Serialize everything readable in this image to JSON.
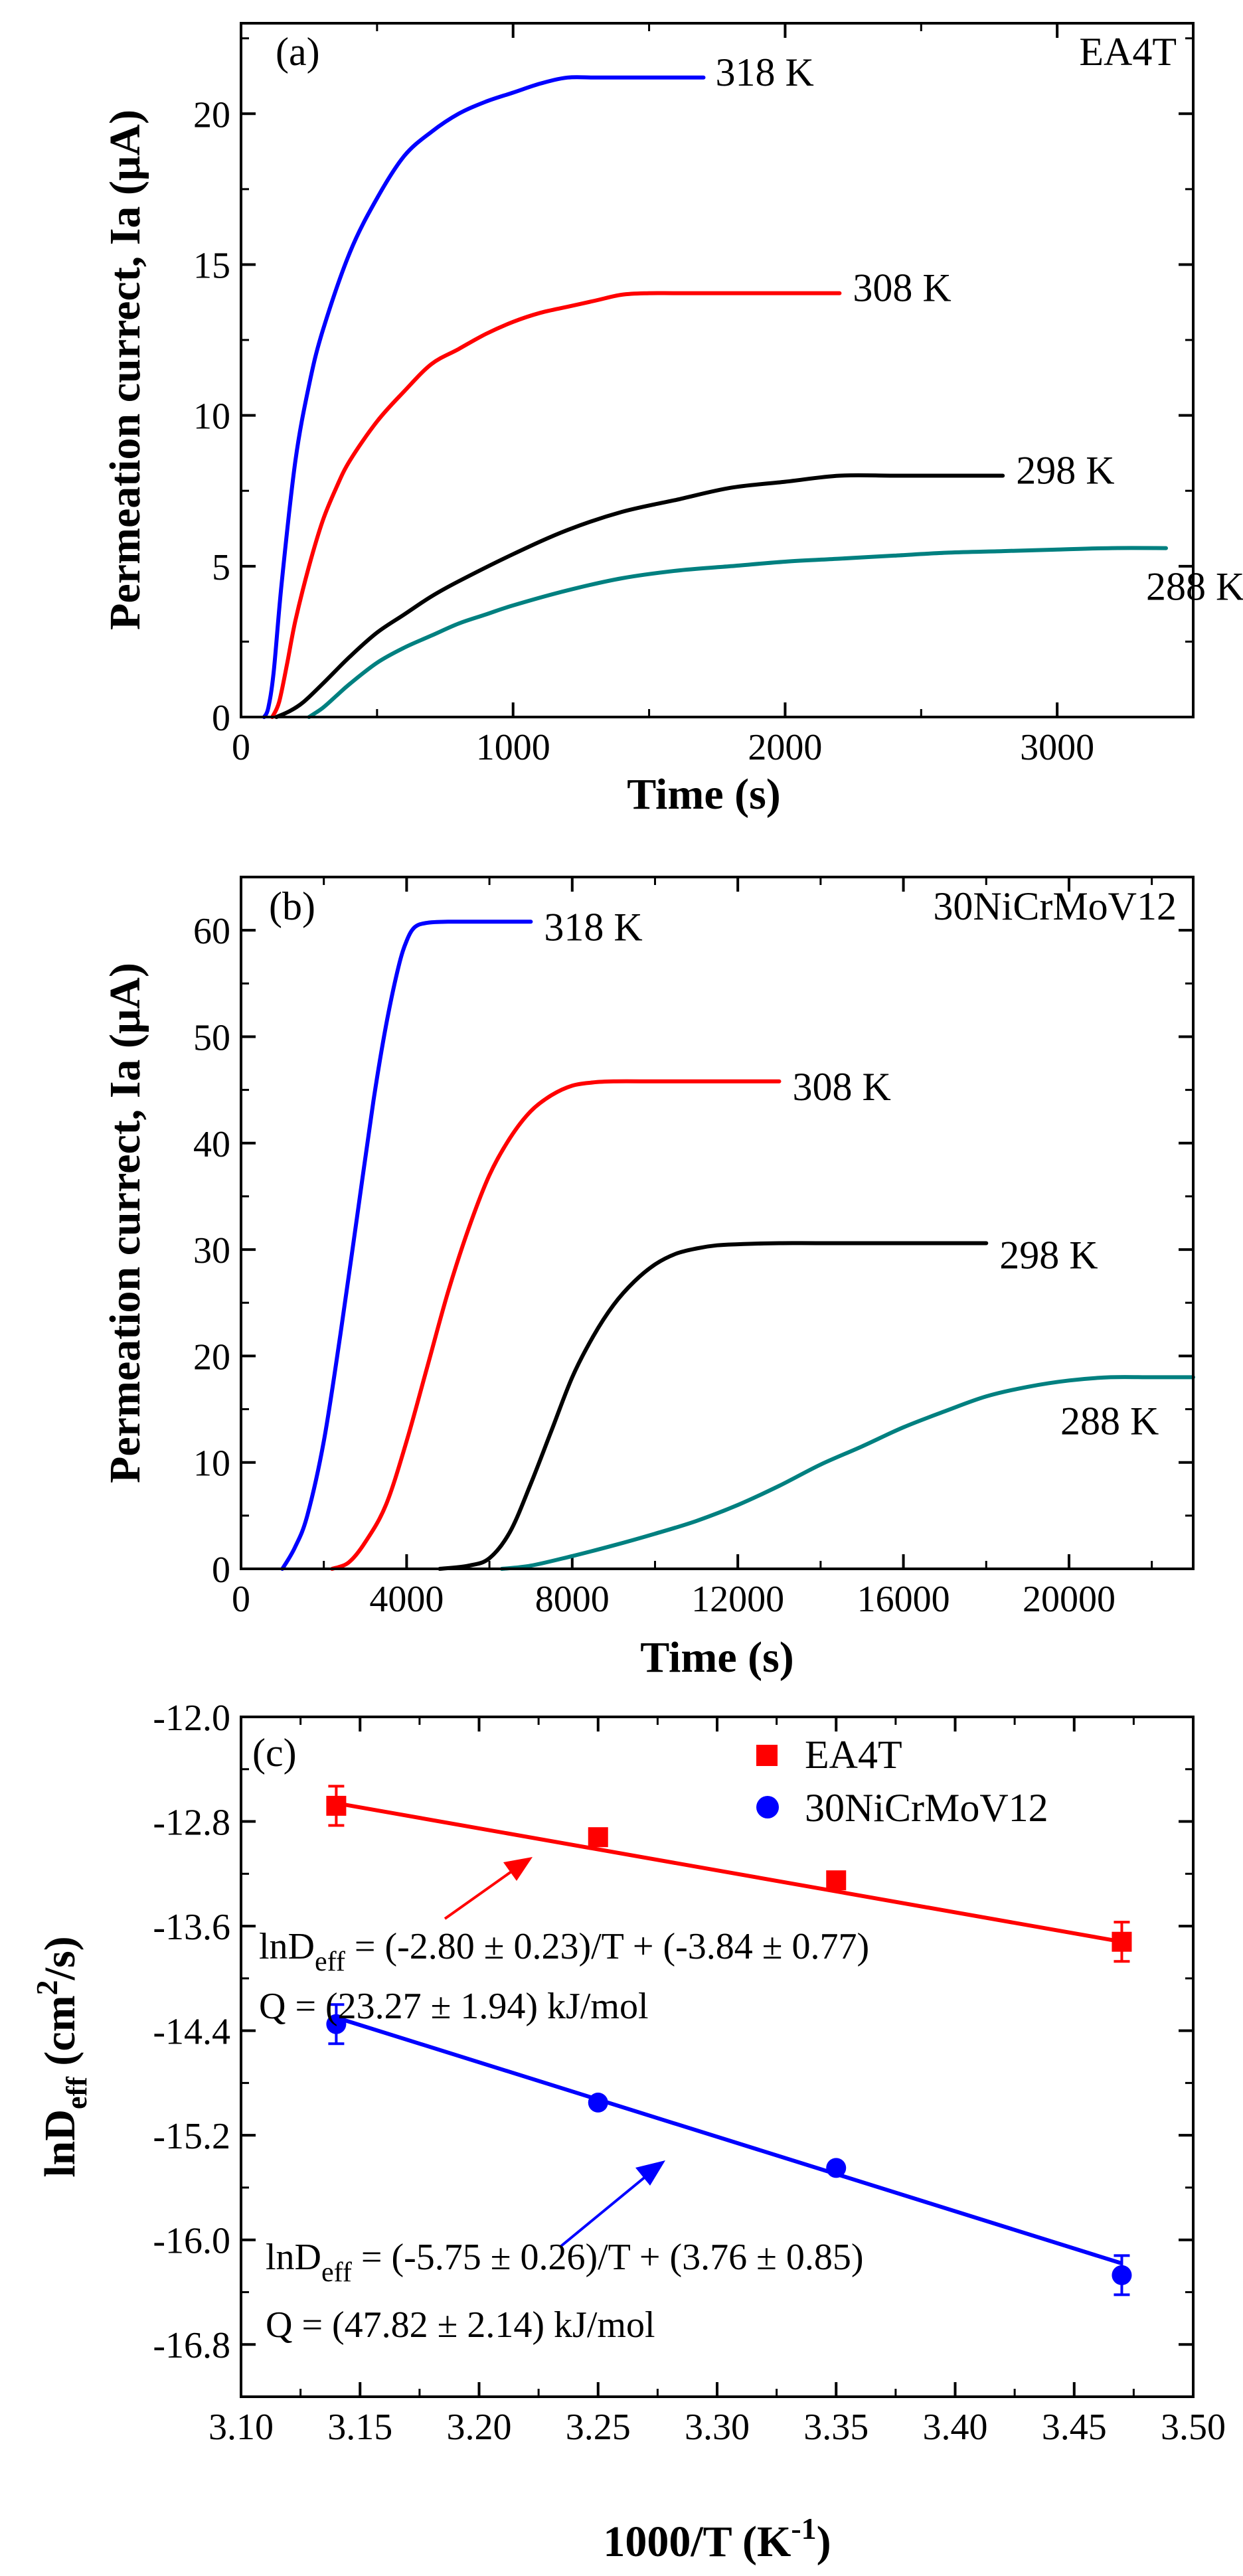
{
  "chart_data": [
    {
      "id": "a",
      "type": "line",
      "panel_label": "(a)",
      "material_label": "EA4T",
      "xlabel": "Time (s)",
      "ylabel": "Permeation currect, Ia (μA)",
      "xlim": [
        0,
        3500
      ],
      "ylim": [
        0,
        23
      ],
      "x_ticks": [
        0,
        1000,
        2000,
        3000
      ],
      "x_tick_labels": [
        "0",
        "1000",
        "2000",
        "3000"
      ],
      "y_ticks": [
        0,
        5,
        10,
        15,
        20
      ],
      "y_tick_labels": [
        "0",
        "5",
        "10",
        "15",
        "20"
      ],
      "series": [
        {
          "name": "318 K",
          "label": "318 K",
          "color": "#0000ff",
          "x": [
            85,
            100,
            120,
            150,
            200,
            250,
            300,
            400,
            500,
            600,
            700,
            800,
            900,
            1000,
            1100,
            1200,
            1300,
            1400,
            1500,
            1600,
            1700
          ],
          "y": [
            0,
            0.3,
            1.5,
            4.5,
            8.5,
            11.0,
            12.8,
            15.4,
            17.2,
            18.6,
            19.4,
            20.0,
            20.4,
            20.7,
            21.0,
            21.2,
            21.2,
            21.2,
            21.2,
            21.2,
            21.2
          ]
        },
        {
          "name": "308 K",
          "label": "308 K",
          "color": "#ff0000",
          "x": [
            115,
            140,
            170,
            200,
            250,
            300,
            350,
            400,
            500,
            600,
            700,
            800,
            900,
            1000,
            1100,
            1200,
            1300,
            1400,
            1500,
            1600,
            1800,
            2000,
            2200
          ],
          "y": [
            0,
            0.5,
            1.8,
            3.2,
            5.0,
            6.5,
            7.6,
            8.5,
            9.8,
            10.8,
            11.7,
            12.2,
            12.7,
            13.1,
            13.4,
            13.6,
            13.8,
            14.0,
            14.05,
            14.05,
            14.05,
            14.05,
            14.05
          ]
        },
        {
          "name": "298 K",
          "label": "298 K",
          "color": "#000000",
          "x": [
            130,
            180,
            230,
            300,
            400,
            500,
            600,
            700,
            800,
            1000,
            1200,
            1400,
            1600,
            1800,
            2000,
            2200,
            2400,
            2600,
            2800
          ],
          "y": [
            0,
            0.2,
            0.5,
            1.1,
            2.0,
            2.8,
            3.4,
            4.0,
            4.5,
            5.4,
            6.2,
            6.8,
            7.2,
            7.6,
            7.8,
            8.0,
            8.0,
            8.0,
            8.0
          ]
        },
        {
          "name": "288 K",
          "label": "288 K",
          "color": "#008080",
          "x": [
            250,
            300,
            350,
            400,
            500,
            600,
            700,
            800,
            900,
            1000,
            1200,
            1400,
            1600,
            1800,
            2000,
            2200,
            2400,
            2600,
            2800,
            3000,
            3200,
            3400
          ],
          "y": [
            0,
            0.3,
            0.7,
            1.1,
            1.8,
            2.3,
            2.7,
            3.1,
            3.4,
            3.7,
            4.2,
            4.6,
            4.85,
            5.0,
            5.15,
            5.25,
            5.35,
            5.45,
            5.5,
            5.55,
            5.6,
            5.6
          ]
        }
      ]
    },
    {
      "id": "b",
      "type": "line",
      "panel_label": "(b)",
      "material_label": "30NiCrMoV12",
      "xlabel": "Time (s)",
      "ylabel": "Permeation currect, Ia (μA)",
      "xlim": [
        0,
        23000
      ],
      "ylim": [
        0,
        65
      ],
      "x_ticks": [
        0,
        4000,
        8000,
        12000,
        16000,
        20000
      ],
      "x_tick_labels": [
        "0",
        "4000",
        "8000",
        "12000",
        "16000",
        "20000"
      ],
      "y_ticks": [
        0,
        10,
        20,
        30,
        40,
        50,
        60
      ],
      "y_tick_labels": [
        "0",
        "10",
        "20",
        "30",
        "40",
        "50",
        "60"
      ],
      "series": [
        {
          "name": "318 K",
          "label": "318 K",
          "color": "#0000ff",
          "x": [
            1000,
            1300,
            1600,
            2000,
            2400,
            2800,
            3200,
            3500,
            3800,
            4000,
            4200,
            4500,
            5000,
            6000,
            7000
          ],
          "y": [
            0,
            2,
            5,
            12,
            22,
            33,
            44,
            51,
            56.5,
            59,
            60.3,
            60.7,
            60.8,
            60.8,
            60.8
          ]
        },
        {
          "name": "308 K",
          "label": "308 K",
          "color": "#ff0000",
          "x": [
            2200,
            2600,
            3000,
            3500,
            4000,
            4500,
            5000,
            5500,
            6000,
            6500,
            7000,
            7500,
            8000,
            8500,
            9000,
            10000,
            11000,
            12000,
            13000
          ],
          "y": [
            0,
            0.6,
            2.5,
            6,
            12,
            19,
            26,
            32,
            37,
            40.5,
            43,
            44.5,
            45.4,
            45.7,
            45.8,
            45.8,
            45.8,
            45.8,
            45.8
          ]
        },
        {
          "name": "298 K",
          "label": "298 K",
          "color": "#000000",
          "x": [
            4800,
            5500,
            6000,
            6500,
            7000,
            7500,
            8000,
            8500,
            9000,
            9500,
            10000,
            10500,
            11000,
            11500,
            12000,
            13000,
            14000,
            16000,
            18000
          ],
          "y": [
            0,
            0.3,
            1,
            3.5,
            8,
            13,
            18,
            21.8,
            24.8,
            27,
            28.6,
            29.6,
            30.1,
            30.4,
            30.5,
            30.6,
            30.6,
            30.6,
            30.6
          ]
        },
        {
          "name": "288 K",
          "label": "288 K",
          "color": "#008080",
          "x": [
            6300,
            7000,
            8000,
            9000,
            10000,
            11000,
            12000,
            13000,
            14000,
            15000,
            16000,
            17000,
            18000,
            19000,
            20000,
            21000,
            22000,
            23000
          ],
          "y": [
            0,
            0.3,
            1.2,
            2.2,
            3.3,
            4.5,
            6,
            7.8,
            9.8,
            11.5,
            13.3,
            14.8,
            16.2,
            17.1,
            17.7,
            18,
            18,
            18
          ]
        }
      ]
    },
    {
      "id": "c",
      "type": "scatter",
      "panel_label": "(c)",
      "xlabel_main": "1000/T (K",
      "xlabel_sup": "-1",
      "xlabel_end": ")",
      "ylabel_main": "lnD",
      "ylabel_sub": "eff",
      "ylabel_mid": " (cm",
      "ylabel_sup": "2",
      "ylabel_end": "/s)",
      "xlim": [
        3.1,
        3.5
      ],
      "ylim": [
        -17.2,
        -12.0
      ],
      "x_ticks": [
        3.1,
        3.15,
        3.2,
        3.25,
        3.3,
        3.35,
        3.4,
        3.45,
        3.5
      ],
      "x_tick_labels": [
        "3.10",
        "3.15",
        "3.20",
        "3.25",
        "3.30",
        "3.35",
        "3.40",
        "3.45",
        "3.50"
      ],
      "y_ticks": [
        -12.0,
        -12.8,
        -13.6,
        -14.4,
        -15.2,
        -16.0,
        -16.8
      ],
      "y_tick_labels": [
        "-12.0",
        "-12.8",
        "-13.6",
        "-14.4",
        "-15.2",
        "-16.0",
        "-16.8"
      ],
      "legend": {
        "position": "top-right"
      },
      "series": [
        {
          "name": "EA4T",
          "marker": "square",
          "color": "#ff0000",
          "x": [
            3.14,
            3.25,
            3.35,
            3.47
          ],
          "y": [
            -12.68,
            -12.92,
            -13.25,
            -13.72
          ],
          "yerr": [
            0.15,
            0,
            0,
            0.15
          ],
          "fit": {
            "x": [
              3.14,
              3.47
            ],
            "y": [
              -12.66,
              -13.72
            ]
          },
          "equation_main": "lnD",
          "equation_sub": "eff",
          "equation_rest": " = (-2.80 ± 0.23)/T + (-3.84 ± 0.77)",
          "q_text": "Q = (23.27 ± 1.94) kJ/mol"
        },
        {
          "name": "30NiCrMoV12",
          "marker": "circle",
          "color": "#0000ff",
          "x": [
            3.14,
            3.25,
            3.35,
            3.47
          ],
          "y": [
            -14.35,
            -14.95,
            -15.45,
            -16.27
          ],
          "yerr": [
            0.15,
            0,
            0,
            0.15
          ],
          "fit": {
            "x": [
              3.14,
              3.47
            ],
            "y": [
              -14.3,
              -16.18
            ]
          },
          "equation_main": "lnD",
          "equation_sub": "eff",
          "equation_rest": " = (-5.75 ± 0.26)/T + (3.76 ± 0.85)",
          "q_text": "Q = (47.82 ± 2.14) kJ/mol"
        }
      ]
    }
  ]
}
